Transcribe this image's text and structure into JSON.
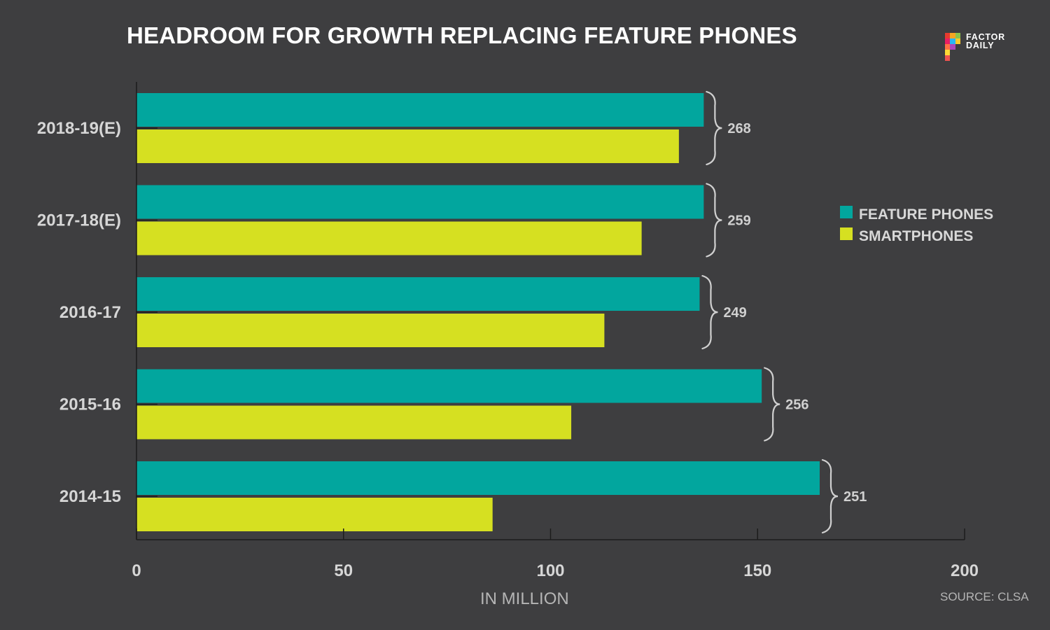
{
  "chart_data": {
    "type": "bar",
    "orientation": "horizontal",
    "title": "HEADROOM FOR GROWTH REPLACING FEATURE PHONES",
    "xlabel": "IN MILLION",
    "ylabel": "",
    "xlim": [
      0,
      200
    ],
    "xticks": [
      0,
      50,
      100,
      150,
      200
    ],
    "categories": [
      "2018-19(E)",
      "2017-18(E)",
      "2016-17",
      "2015-16",
      "2014-15"
    ],
    "series": [
      {
        "name": "FEATURE PHONES",
        "color": "#02a69e",
        "values": [
          137,
          137,
          136,
          151,
          165
        ]
      },
      {
        "name": "SMARTPHONES",
        "color": "#d6e021",
        "values": [
          131,
          122,
          113,
          105,
          86
        ]
      }
    ],
    "totals": [
      "268",
      "259",
      "249",
      "256",
      "251"
    ],
    "legend_position": "right",
    "grid": false
  },
  "source": "SOURCE: CLSA",
  "logo": {
    "line1": "FACTOR",
    "line2": "DAILY"
  },
  "colors": {
    "background": "#3e3e40",
    "axis": "#1c1c1c",
    "bracket": "#d0d0d0"
  }
}
